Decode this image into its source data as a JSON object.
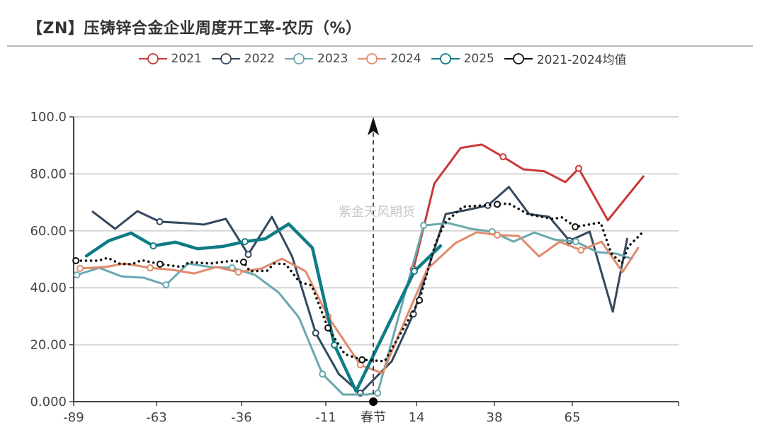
{
  "title": "【ZN】压铸锌合金企业周度开工率-农历（%）",
  "watermark": "紫金天风期货",
  "chart_data": {
    "type": "line",
    "title": "【ZN】压铸锌合金企业周度开工率-农历（%）",
    "ylim": [
      0,
      100
    ],
    "y_ticks": [
      "0.000",
      "20.00",
      "40.00",
      "60.00",
      "80.00",
      "100.0"
    ],
    "x_ticks": [
      {
        "value": -89,
        "label": "-89"
      },
      {
        "value": -63,
        "label": "-63"
      },
      {
        "value": -36,
        "label": "-36"
      },
      {
        "value": -11,
        "label": "-11"
      },
      {
        "value": 0,
        "label": "春节"
      },
      {
        "value": 14,
        "label": "14"
      },
      {
        "value": 38,
        "label": "38"
      },
      {
        "value": 65,
        "label": "65"
      }
    ],
    "grid": true,
    "legend_position": "top",
    "annotation": {
      "x": 0,
      "label": "春节",
      "style": "dashed-arrow"
    },
    "series": [
      {
        "name": "2021",
        "color": "#c9383a",
        "width": 3,
        "dotted": false,
        "points": [
          [
            13,
            46.5
          ],
          [
            19.5,
            76.6
          ],
          [
            27.6,
            89.1
          ],
          [
            34.1,
            90.3
          ],
          [
            41,
            86
          ],
          [
            48,
            81.6
          ],
          [
            55.3,
            80.9
          ],
          [
            62.6,
            77.1
          ],
          [
            67.2,
            81.9
          ],
          [
            77.3,
            63.7
          ],
          [
            89.6,
            79.1
          ]
        ]
      },
      {
        "name": "2022",
        "color": "#34495e",
        "width": 3,
        "dotted": false,
        "points": [
          [
            -83,
            66.7
          ],
          [
            -76,
            60.7
          ],
          [
            -69,
            66.9
          ],
          [
            -62,
            63.2
          ],
          [
            -54,
            62.7
          ],
          [
            -48,
            62.2
          ],
          [
            -41,
            64.2
          ],
          [
            -34,
            51.7
          ],
          [
            -27,
            64.9
          ],
          [
            -21,
            51.0
          ],
          [
            -14,
            24.1
          ],
          [
            -8,
            9.7
          ],
          [
            -3,
            3.0
          ],
          [
            6,
            14.2
          ],
          [
            13,
            30.8
          ],
          [
            23,
            65.9
          ],
          [
            29,
            67.2
          ],
          [
            36,
            68.9
          ],
          [
            43,
            75.4
          ],
          [
            50,
            65.9
          ],
          [
            57,
            64.9
          ],
          [
            64,
            56.5
          ],
          [
            71,
            59.7
          ],
          [
            79,
            31.6
          ],
          [
            84,
            57.2
          ]
        ]
      },
      {
        "name": "2023",
        "color": "#6aa8ae",
        "width": 3,
        "dotted": false,
        "points": [
          [
            -88,
            44.5
          ],
          [
            -81,
            47.0
          ],
          [
            -74,
            44.0
          ],
          [
            -67,
            43.5
          ],
          [
            -60,
            41.0
          ],
          [
            -53,
            48.5
          ],
          [
            -46,
            47.3
          ],
          [
            -39,
            47.0
          ],
          [
            -32,
            44.5
          ],
          [
            -25,
            38.3
          ],
          [
            -19,
            29.6
          ],
          [
            -12,
            9.7
          ],
          [
            -7,
            2.5
          ],
          [
            -1.5,
            2.5
          ],
          [
            1.4,
            3.0
          ],
          [
            16.2,
            61.9
          ],
          [
            23.8,
            62.7
          ],
          [
            30.8,
            60.7
          ],
          [
            37.3,
            59.7
          ],
          [
            44.6,
            56.2
          ],
          [
            51.8,
            59.4
          ],
          [
            58.9,
            56.9
          ],
          [
            66.2,
            56.2
          ],
          [
            73.6,
            52.5
          ],
          [
            80.2,
            52.0
          ],
          [
            85.6,
            50.2
          ]
        ]
      },
      {
        "name": "2024",
        "color": "#e08b6b",
        "width": 3,
        "dotted": false,
        "points": [
          [
            -87,
            46.8
          ],
          [
            -79,
            47.3
          ],
          [
            -73,
            48.5
          ],
          [
            -65,
            47.0
          ],
          [
            -58,
            46.3
          ],
          [
            -51,
            45.0
          ],
          [
            -44,
            47.3
          ],
          [
            -37,
            45.5
          ],
          [
            -30,
            46.8
          ],
          [
            -24,
            50.2
          ],
          [
            -17,
            45.8
          ],
          [
            -10.5,
            29.9
          ],
          [
            -3,
            12.9
          ],
          [
            3,
            10.0
          ],
          [
            10.3,
            28.6
          ],
          [
            17.3,
            46.5
          ],
          [
            26,
            55.7
          ],
          [
            32.6,
            59.5
          ],
          [
            39,
            58.5
          ],
          [
            46.4,
            58.2
          ],
          [
            53.5,
            51.0
          ],
          [
            60.6,
            56.2
          ],
          [
            68,
            53.2
          ],
          [
            75.1,
            56.2
          ],
          [
            82.4,
            45.5
          ],
          [
            87.8,
            54.0
          ]
        ]
      },
      {
        "name": "2025",
        "color": "#0e7c86",
        "width": 4.5,
        "dotted": false,
        "points": [
          [
            -85,
            51.2
          ],
          [
            -78,
            56.5
          ],
          [
            -71,
            59.2
          ],
          [
            -64,
            54.7
          ],
          [
            -57,
            56.0
          ],
          [
            -50,
            53.7
          ],
          [
            -42,
            54.5
          ],
          [
            -35,
            56.2
          ],
          [
            -29,
            57.2
          ],
          [
            -22,
            62.4
          ],
          [
            -15,
            54.0
          ],
          [
            -9,
            19.9
          ],
          [
            -4,
            3.7
          ],
          [
            13.3,
            45.8
          ],
          [
            21.4,
            54.7
          ]
        ]
      },
      {
        "name": "2021-2024均值",
        "color": "#111111",
        "width": 3,
        "dotted": true,
        "points": [
          [
            -88.3,
            49.5
          ],
          [
            -81.4,
            49.5
          ],
          [
            -78.3,
            50.5
          ],
          [
            -74.3,
            48.3
          ],
          [
            -70.6,
            48.3
          ],
          [
            -67.7,
            49.7
          ],
          [
            -61.9,
            48.3
          ],
          [
            -54.9,
            47.3
          ],
          [
            -52.6,
            49.0
          ],
          [
            -45.9,
            48.5
          ],
          [
            -38.9,
            49.5
          ],
          [
            -35.4,
            49.0
          ],
          [
            -33.5,
            45.8
          ],
          [
            -28.4,
            46.0
          ],
          [
            -26.3,
            48.5
          ],
          [
            -22.9,
            48.3
          ],
          [
            -18.8,
            42.0
          ],
          [
            -15.2,
            40.8
          ],
          [
            -10.5,
            25.9
          ],
          [
            -6.6,
            16.7
          ],
          [
            -2.6,
            14.7
          ],
          [
            3.7,
            14.2
          ],
          [
            11.5,
            29.0
          ],
          [
            14.9,
            35.6
          ],
          [
            19.9,
            55.7
          ],
          [
            22.7,
            62.7
          ],
          [
            28.2,
            68.4
          ],
          [
            39,
            69.3
          ],
          [
            42.9,
            69.6
          ],
          [
            50,
            65.7
          ],
          [
            58.2,
            64.2
          ],
          [
            61.4,
            64.7
          ],
          [
            66,
            61.4
          ],
          [
            74.8,
            62.9
          ],
          [
            78.5,
            52.0
          ],
          [
            82.2,
            48.5
          ],
          [
            84.4,
            54.5
          ],
          [
            89.6,
            59.7
          ]
        ]
      }
    ]
  }
}
